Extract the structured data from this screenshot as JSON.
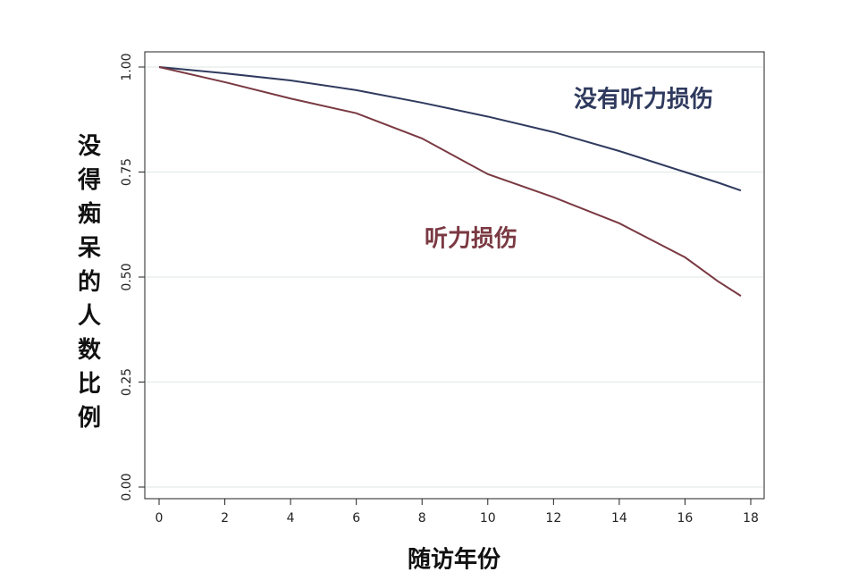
{
  "chart_data": {
    "type": "line",
    "y_label": "没得痴呆的人数比例",
    "x_label": "随访年份",
    "x": [
      0,
      2,
      4,
      6,
      8,
      10,
      12,
      14,
      16,
      17,
      17.7
    ],
    "series": [
      {
        "name": "没有听力损伤",
        "color": "#2f3a5e",
        "values": [
          1,
          0.985,
          0.968,
          0.945,
          0.915,
          0.882,
          0.845,
          0.8,
          0.75,
          0.725,
          0.706
        ]
      },
      {
        "name": "听力损伤",
        "color": "#7a3942",
        "values": [
          1,
          0.964,
          0.925,
          0.89,
          0.83,
          0.745,
          0.69,
          0.628,
          0.547,
          0.49,
          0.455
        ]
      }
    ],
    "xlim": [
      0,
      18
    ],
    "xticks": [
      0,
      2,
      4,
      6,
      8,
      10,
      12,
      14,
      16,
      18
    ],
    "ylim": [
      0,
      1
    ],
    "yticks": [
      {
        "value": 0,
        "label": "0.00"
      },
      0.25,
      {
        "value": 0.5,
        "label": "0.50"
      },
      0.75,
      {
        "value": 1,
        "label": "1.00"
      }
    ],
    "grid": true
  }
}
